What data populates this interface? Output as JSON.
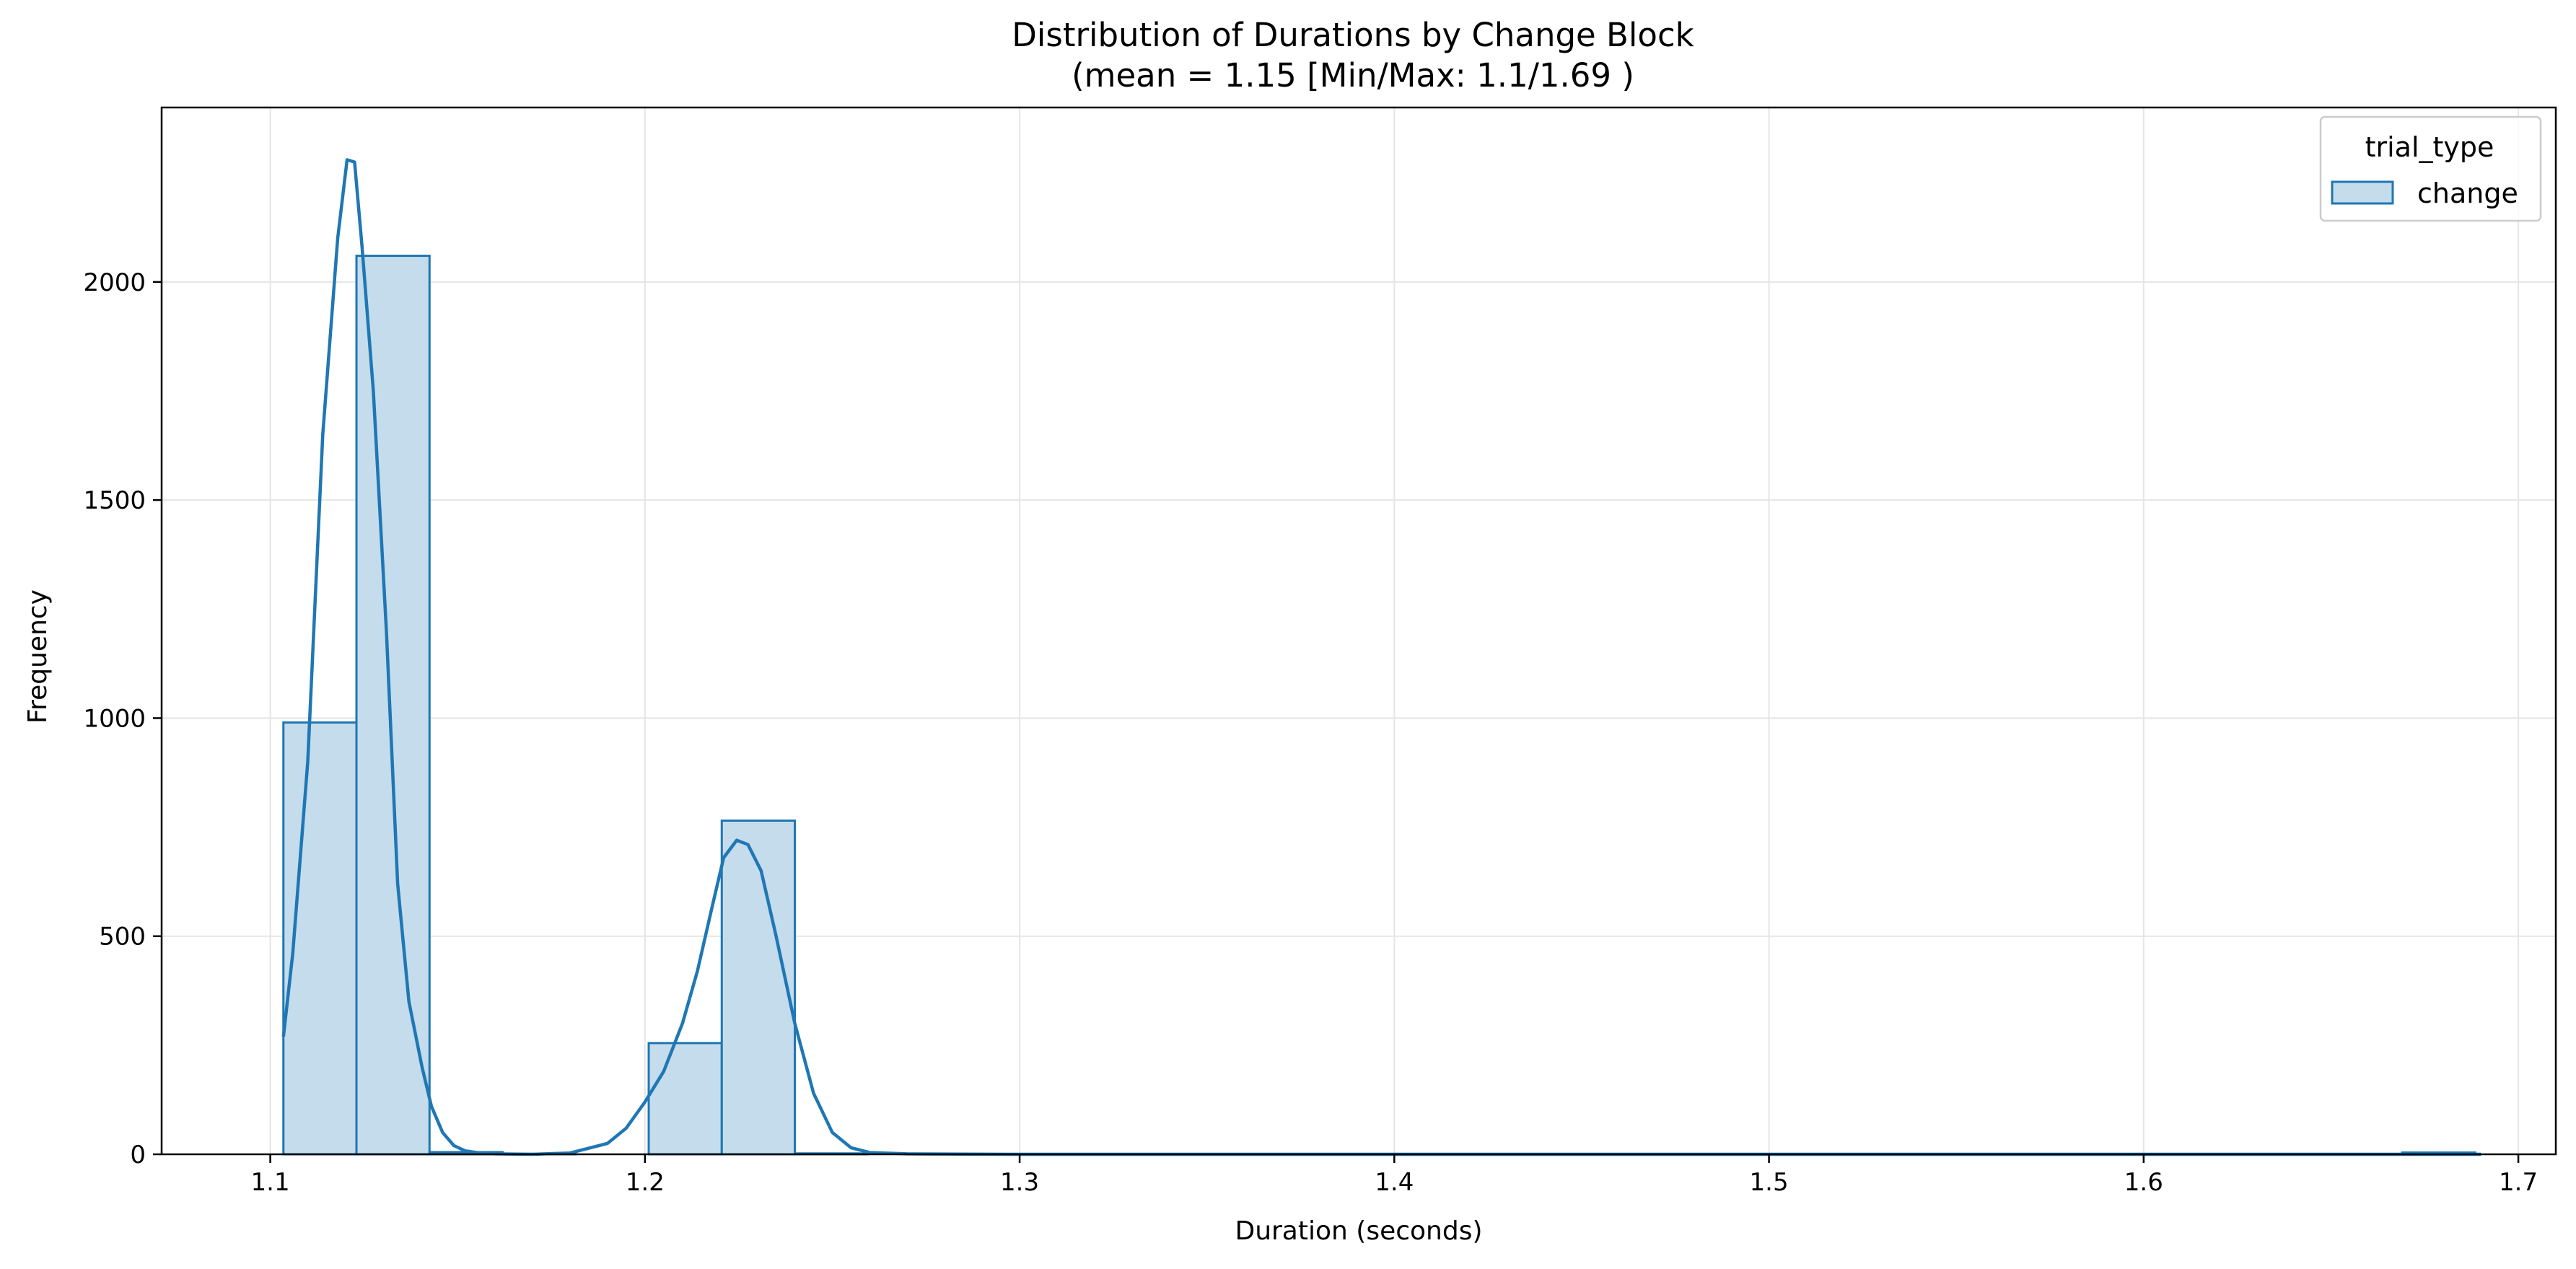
{
  "chart_data": {
    "type": "bar",
    "subtype": "histogram_with_kde",
    "title": "Distribution of Durations by Change Block",
    "subtitle": "(mean = 1.15 [Min/Max: 1.1/1.69 )",
    "xlabel": "Duration (seconds)",
    "ylabel": "Frequency",
    "xlim": [
      1.071,
      1.71
    ],
    "ylim": [
      0,
      2400
    ],
    "x_ticks": [
      "1.1",
      "1.2",
      "1.3",
      "1.4",
      "1.5",
      "1.6",
      "1.7"
    ],
    "x_tick_values": [
      1.1,
      1.2,
      1.3,
      1.4,
      1.5,
      1.6,
      1.7
    ],
    "y_ticks": [
      "0",
      "500",
      "1000",
      "1500",
      "2000"
    ],
    "y_tick_values": [
      0,
      500,
      1000,
      1500,
      2000
    ],
    "grid": true,
    "legend": {
      "title": "trial_type",
      "position": "top-right",
      "entries": [
        "change"
      ]
    },
    "bin_width": 0.0195,
    "bins": [
      {
        "start": 1.1035,
        "count": 990
      },
      {
        "start": 1.123,
        "count": 2060
      },
      {
        "start": 1.1425,
        "count": 5
      },
      {
        "start": 1.162,
        "count": 1
      },
      {
        "start": 1.1815,
        "count": 0
      },
      {
        "start": 1.201,
        "count": 255
      },
      {
        "start": 1.2205,
        "count": 765
      },
      {
        "start": 1.24,
        "count": 2
      },
      {
        "start": 1.2595,
        "count": 0
      },
      {
        "start": 1.279,
        "count": 0
      },
      {
        "start": 1.2985,
        "count": 0
      },
      {
        "start": 1.318,
        "count": 0
      },
      {
        "start": 1.3375,
        "count": 0
      },
      {
        "start": 1.357,
        "count": 0
      },
      {
        "start": 1.3765,
        "count": 0
      },
      {
        "start": 1.396,
        "count": 0
      },
      {
        "start": 1.4155,
        "count": 0
      },
      {
        "start": 1.435,
        "count": 0
      },
      {
        "start": 1.4545,
        "count": 0
      },
      {
        "start": 1.474,
        "count": 0
      },
      {
        "start": 1.4935,
        "count": 0
      },
      {
        "start": 1.513,
        "count": 0
      },
      {
        "start": 1.5325,
        "count": 0
      },
      {
        "start": 1.552,
        "count": 0
      },
      {
        "start": 1.5715,
        "count": 0
      },
      {
        "start": 1.591,
        "count": 0
      },
      {
        "start": 1.6105,
        "count": 0
      },
      {
        "start": 1.63,
        "count": 0
      },
      {
        "start": 1.6495,
        "count": 0
      },
      {
        "start": 1.669,
        "count": 4
      }
    ],
    "kde": {
      "x": [
        1.1035,
        1.106,
        1.11,
        1.114,
        1.118,
        1.1205,
        1.1225,
        1.1245,
        1.1275,
        1.131,
        1.134,
        1.137,
        1.1405,
        1.143,
        1.146,
        1.149,
        1.152,
        1.156,
        1.16,
        1.17,
        1.18,
        1.19,
        1.195,
        1.2,
        1.205,
        1.21,
        1.214,
        1.218,
        1.221,
        1.2245,
        1.2275,
        1.231,
        1.235,
        1.24,
        1.245,
        1.25,
        1.255,
        1.26,
        1.27,
        1.3,
        1.4,
        1.5,
        1.6,
        1.69
      ],
      "y": [
        270,
        460,
        900,
        1650,
        2100,
        2280,
        2275,
        2080,
        1750,
        1200,
        620,
        350,
        200,
        110,
        50,
        20,
        8,
        3,
        1,
        0,
        3,
        25,
        60,
        120,
        190,
        300,
        420,
        570,
        680,
        720,
        710,
        650,
        500,
        300,
        140,
        50,
        15,
        4,
        1,
        0,
        0,
        0,
        0,
        0
      ]
    },
    "colors": {
      "bar_fill": "#c5dcec",
      "line": "#1f77b4",
      "grid": "#e5e5e5"
    }
  }
}
